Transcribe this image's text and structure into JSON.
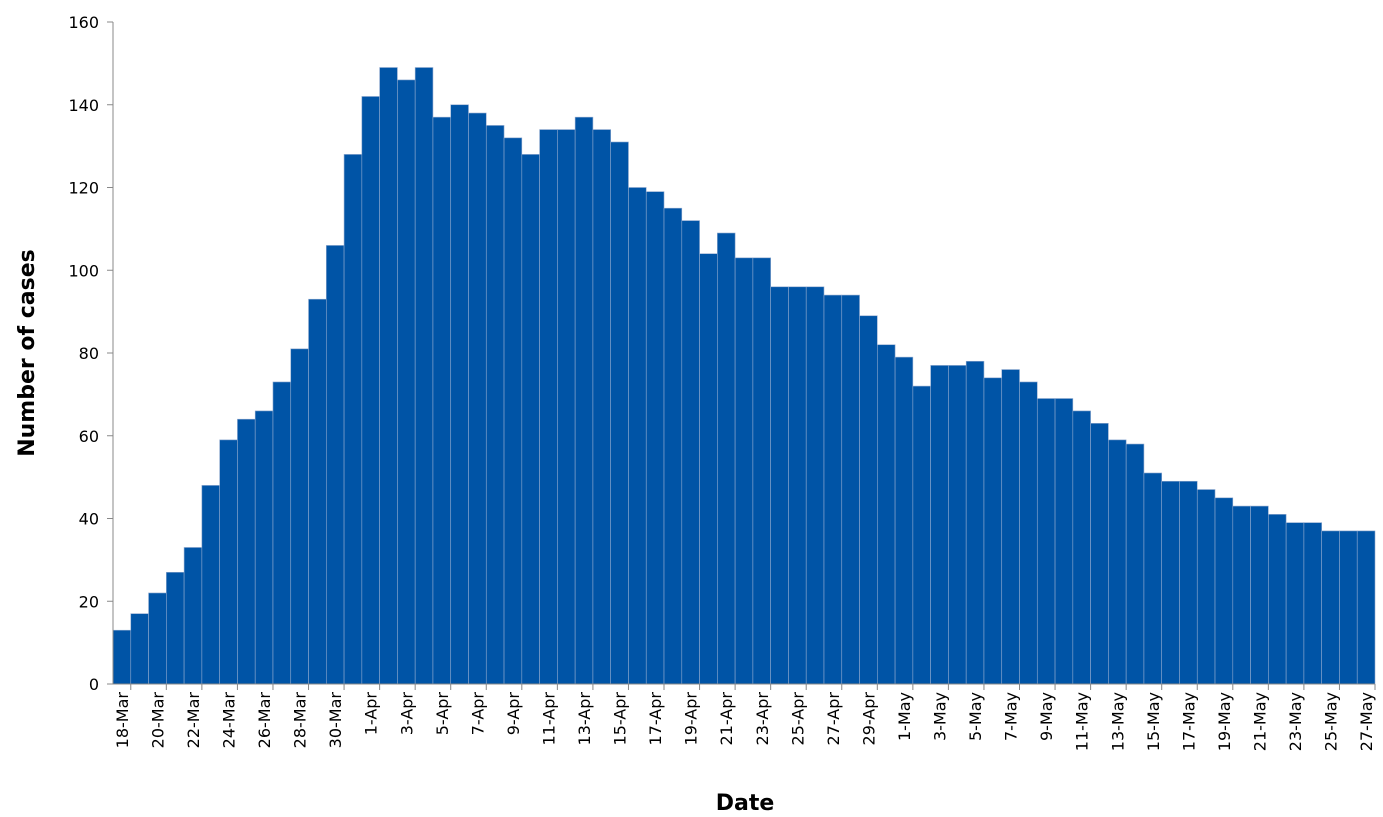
{
  "chart_data": {
    "type": "bar",
    "x_label": "Date",
    "y_label": "Number of cases",
    "categories": [
      "18-Mar",
      null,
      "20-Mar",
      null,
      "22-Mar",
      null,
      "24-Mar",
      null,
      "26-Mar",
      null,
      "28-Mar",
      null,
      "30-Mar",
      null,
      "1-Apr",
      null,
      "3-Apr",
      null,
      "5-Apr",
      null,
      "7-Apr",
      null,
      "9-Apr",
      null,
      "11-Apr",
      null,
      "13-Apr",
      null,
      "15-Apr",
      null,
      "17-Apr",
      null,
      "19-Apr",
      null,
      "21-Apr",
      null,
      "23-Apr",
      null,
      "25-Apr",
      null,
      "27-Apr",
      null,
      "29-Apr",
      null,
      "1-May",
      null,
      "3-May",
      null,
      "5-May",
      null,
      "7-May",
      null,
      "9-May",
      null,
      "11-May",
      null,
      "13-May",
      null,
      "15-May",
      null,
      "17-May",
      null,
      "19-May",
      null,
      "21-May",
      null,
      "23-May",
      null,
      "25-May",
      null,
      "27-May"
    ],
    "values": [
      13,
      17,
      22,
      27,
      33,
      48,
      59,
      64,
      66,
      73,
      81,
      93,
      106,
      128,
      142,
      149,
      146,
      149,
      137,
      140,
      138,
      135,
      132,
      128,
      134,
      134,
      137,
      134,
      131,
      120,
      119,
      115,
      112,
      104,
      109,
      103,
      103,
      96,
      96,
      96,
      94,
      94,
      89,
      82,
      79,
      72,
      77,
      77,
      78,
      74,
      76,
      73,
      69,
      69,
      66,
      63,
      59,
      58,
      51,
      49,
      49,
      47,
      45,
      43,
      43,
      41,
      39,
      39,
      37,
      37,
      37
    ],
    "color": "#0054a6",
    "ylim": [
      0,
      160
    ],
    "yticks": [
      0,
      20,
      40,
      60,
      80,
      100,
      120,
      140,
      160
    ],
    "grid": false
  }
}
